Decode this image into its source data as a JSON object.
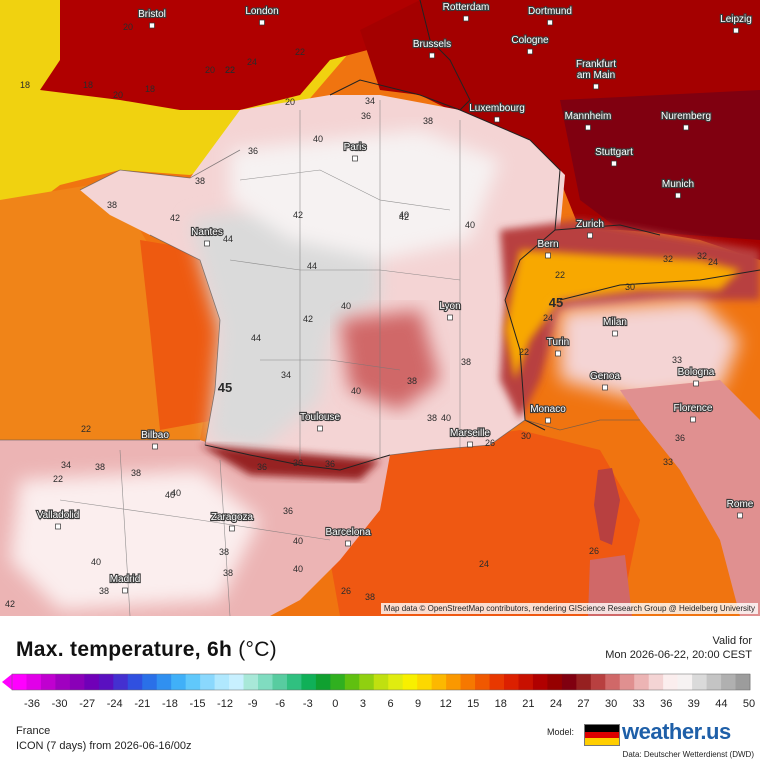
{
  "map": {
    "cities": [
      {
        "name": "Bristol"
      },
      {
        "name": "London"
      },
      {
        "name": "Rotterdam"
      },
      {
        "name": "Dortmund"
      },
      {
        "name": "Leipzig"
      },
      {
        "name": "Brussels"
      },
      {
        "name": "Cologne"
      },
      {
        "name": "Frankfurt am Main"
      },
      {
        "name": "Luxembourg"
      },
      {
        "name": "Mannheim"
      },
      {
        "name": "Nuremberg"
      },
      {
        "name": "Paris"
      },
      {
        "name": "Stuttgart"
      },
      {
        "name": "Munich"
      },
      {
        "name": "Zurich"
      },
      {
        "name": "Bern"
      },
      {
        "name": "Nantes"
      },
      {
        "name": "Lyon"
      },
      {
        "name": "Milan"
      },
      {
        "name": "Turin"
      },
      {
        "name": "Genoa"
      },
      {
        "name": "Bologna"
      },
      {
        "name": "Florence"
      },
      {
        "name": "Toulouse"
      },
      {
        "name": "Monaco"
      },
      {
        "name": "Marseille"
      },
      {
        "name": "Bilbao"
      },
      {
        "name": "Valladolid"
      },
      {
        "name": "Zaragoza"
      },
      {
        "name": "Barcelona"
      },
      {
        "name": "Madrid"
      },
      {
        "name": "Rome"
      }
    ],
    "isotherm_labels": [
      "20",
      "18",
      "22",
      "24",
      "22",
      "20",
      "18",
      "20",
      "18",
      "20",
      "22",
      "34",
      "36",
      "38",
      "40",
      "36",
      "38",
      "38",
      "40",
      "42",
      "44",
      "42",
      "42",
      "40",
      "44",
      "42",
      "40",
      "44",
      "38",
      "40",
      "38",
      "40",
      "34",
      "36",
      "22",
      "45",
      "45",
      "22",
      "24",
      "38",
      "40",
      "36",
      "34",
      "38",
      "40",
      "22",
      "38",
      "40",
      "38",
      "36",
      "40",
      "42",
      "38",
      "40",
      "38",
      "36",
      "22",
      "26",
      "24",
      "26",
      "30",
      "33",
      "36",
      "26",
      "32",
      "32",
      "24",
      "30",
      "33",
      "38"
    ],
    "attribution": "Map data © OpenStreetMap contributors, rendering GIScience Research Group @ Heidelberg University"
  },
  "legend": {
    "title": "Max. temperature, 6h",
    "unit": "(°C)",
    "valid_label": "Valid for",
    "valid_time": "Mon 2026-06-22, 20:00 CEST",
    "ticks": [
      "-36",
      "-30",
      "-27",
      "-24",
      "-21",
      "-18",
      "-15",
      "-12",
      "-9",
      "-6",
      "-3",
      "0",
      "3",
      "6",
      "9",
      "12",
      "15",
      "18",
      "21",
      "24",
      "27",
      "30",
      "33",
      "36",
      "39",
      "44",
      "50"
    ],
    "colors": [
      "#ff00ff",
      "#e100e8",
      "#c000d0",
      "#a000c0",
      "#8a00b8",
      "#7000b8",
      "#5a10c0",
      "#4430d0",
      "#3050e0",
      "#2a70e8",
      "#3090f0",
      "#40b0f8",
      "#60c8fb",
      "#8ad8fd",
      "#b0e8fe",
      "#c8f0ff",
      "#a8e8d8",
      "#80dcc0",
      "#58cca0",
      "#30c080",
      "#10b058",
      "#10a030",
      "#30b020",
      "#60c010",
      "#90d010",
      "#c0e010",
      "#e0ec10",
      "#f8f000",
      "#fcd800",
      "#fcb800",
      "#fa9800",
      "#f67800",
      "#f05800",
      "#e83800",
      "#dc2000",
      "#c81000",
      "#b00000",
      "#960000",
      "#800010",
      "#962020",
      "#b84040",
      "#d06868",
      "#e09090",
      "#ecb4b4",
      "#f4d4d4",
      "#fbeeee",
      "#f6f2f2",
      "#dadada",
      "#c4c4c4",
      "#b0b0b0",
      "#9c9c9c"
    ]
  },
  "footer": {
    "region": "France",
    "model_run": "ICON (7 days)  from  2026-06-16/00z",
    "model_label": "Model:",
    "logo_text": "weather.us",
    "data_source": "Data: Deutscher Wetterdienst (DWD)"
  }
}
